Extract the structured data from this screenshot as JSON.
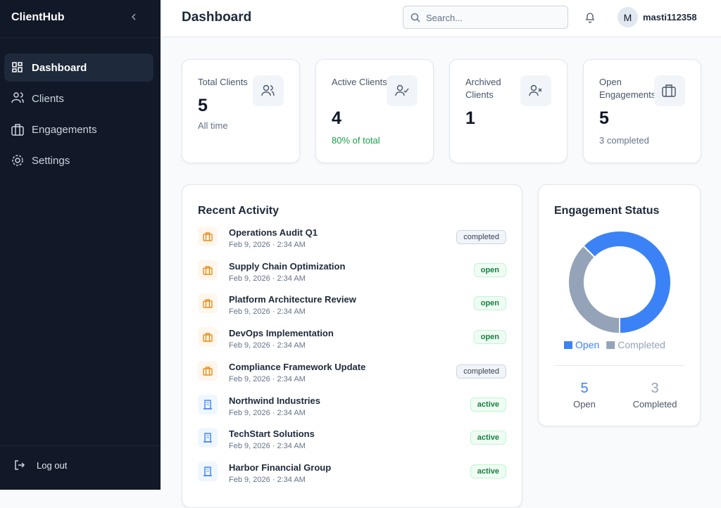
{
  "sidebar": {
    "brand": "ClientHub",
    "nav": [
      "Dashboard",
      "Clients",
      "Engagements",
      "Settings"
    ],
    "logout": "Log out"
  },
  "header": {
    "title": "Dashboard",
    "search_placeholder": "Search...",
    "avatar": "M",
    "username": "masti112358"
  },
  "stats": [
    {
      "label": "Total Clients",
      "value": 5,
      "note": "All time"
    },
    {
      "label": "Active Clients",
      "value": 4,
      "note": "80% of total"
    },
    {
      "label": "Archived Clients",
      "value": 1
    },
    {
      "label": "Open Engagements",
      "value": 5,
      "note": "3 completed"
    }
  ],
  "recent_activity": {
    "title": "Recent Activity",
    "items": [
      {
        "kind": "engagement",
        "name": "Operations Audit Q1",
        "time": "Feb 9, 2026 · 2:34 AM",
        "status": "completed",
        "status_tone": "gray"
      },
      {
        "kind": "engagement",
        "name": "Supply Chain Optimization",
        "time": "Feb 9, 2026 · 2:34 AM",
        "status": "open",
        "status_tone": "green"
      },
      {
        "kind": "engagement",
        "name": "Platform Architecture Review",
        "time": "Feb 9, 2026 · 2:34 AM",
        "status": "open",
        "status_tone": "green"
      },
      {
        "kind": "engagement",
        "name": "DevOps Implementation",
        "time": "Feb 9, 2026 · 2:34 AM",
        "status": "open",
        "status_tone": "green"
      },
      {
        "kind": "engagement",
        "name": "Compliance Framework Update",
        "time": "Feb 9, 2026 · 2:34 AM",
        "status": "completed",
        "status_tone": "gray"
      },
      {
        "kind": "client",
        "name": "Northwind Industries",
        "time": "Feb 9, 2026 · 2:34 AM",
        "status": "active",
        "status_tone": "green"
      },
      {
        "kind": "client",
        "name": "TechStart Solutions",
        "time": "Feb 9, 2026 · 2:34 AM",
        "status": "active",
        "status_tone": "green"
      },
      {
        "kind": "client",
        "name": "Harbor Financial Group",
        "time": "Feb 9, 2026 · 2:34 AM",
        "status": "active",
        "status_tone": "green"
      }
    ]
  },
  "engagement_status": {
    "title": "Engagement Status",
    "chart_data": {
      "type": "pie",
      "donut": true,
      "categories": [
        "Open",
        "Completed"
      ],
      "values": [
        5,
        3
      ],
      "colors": [
        "#3b82f6",
        "#94a3b8"
      ]
    },
    "summary": [
      {
        "value": 5,
        "label": "Open"
      },
      {
        "value": 3,
        "label": "Completed"
      }
    ]
  }
}
